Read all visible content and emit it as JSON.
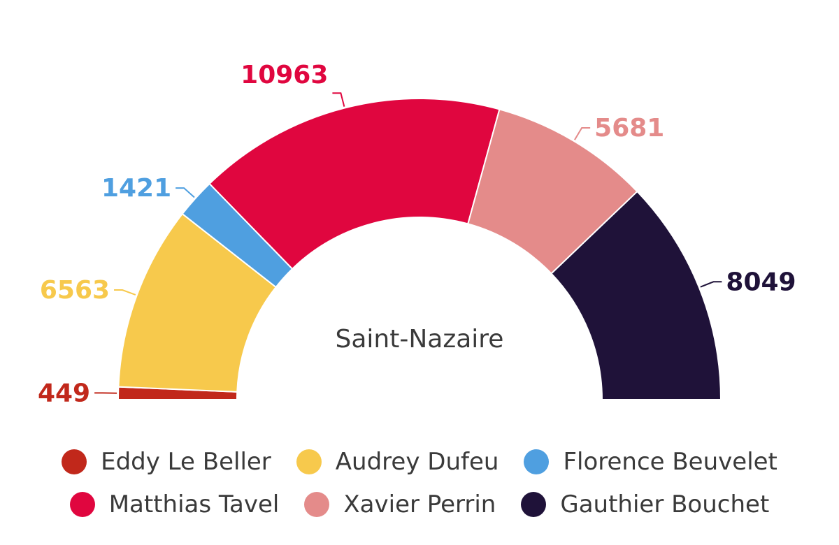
{
  "chart_data": {
    "type": "pie",
    "subtype": "semicircle-donut",
    "title": "Saint-Nazaire",
    "categories": [
      "Eddy Le Beller",
      "Audrey Dufeu",
      "Florence Beuvelet",
      "Matthias Tavel",
      "Xavier Perrin",
      "Gauthier Bouchet"
    ],
    "values": [
      449,
      6563,
      1421,
      10963,
      5681,
      8049
    ],
    "data_labels": [
      "449",
      "6563",
      "1421",
      "10963",
      "5681",
      "8049"
    ],
    "colors": [
      "#c1281b",
      "#f7c94c",
      "#4f9fe0",
      "#e0063f",
      "#e48b8a",
      "#1f1239"
    ],
    "legend_position": "bottom",
    "legend_rows": [
      [
        "Eddy Le Beller",
        "Audrey Dufeu",
        "Florence Beuvelet"
      ],
      [
        "Matthias Tavel",
        "Xavier Perrin",
        "Gauthier Bouchet"
      ]
    ]
  }
}
